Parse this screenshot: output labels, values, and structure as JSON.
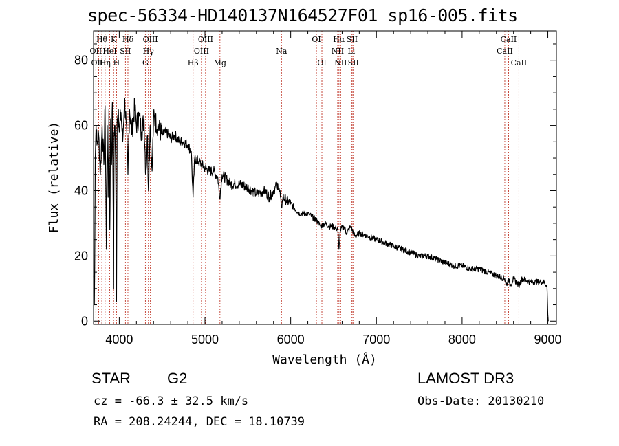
{
  "title": "spec-56334-HD140137N164527F01_sp16-005.fits",
  "info": {
    "object_class": "STAR",
    "subclass": "G2",
    "survey": "LAMOST DR3",
    "cz": "cz = -66.3 ± 32.5 km/s",
    "obs_date": "Obs-Date: 20130210",
    "radec": "RA = 208.24244, DEC =  18.10739"
  },
  "chart_data": {
    "type": "line",
    "title": "spec-56334-HD140137N164527F01_sp16-005.fits",
    "xlabel": "Wavelength (Å)",
    "ylabel": "Flux (relative)",
    "xlim": [
      3700,
      9100
    ],
    "ylim": [
      -1,
      89
    ],
    "xticks": [
      4000,
      5000,
      6000,
      7000,
      8000,
      9000
    ],
    "yticks": [
      0,
      20,
      40,
      60,
      80
    ],
    "grid": false,
    "series": [
      {
        "name": "flux",
        "x": [
          3700,
          3710,
          3720,
          3730,
          3740,
          3760,
          3780,
          3800,
          3820,
          3835,
          3850,
          3860,
          3870,
          3880,
          3890,
          3900,
          3910,
          3920,
          3930,
          3934,
          3940,
          3950,
          3960,
          3968,
          3975,
          3990,
          4000,
          4020,
          4040,
          4060,
          4080,
          4101,
          4120,
          4150,
          4180,
          4200,
          4230,
          4260,
          4290,
          4310,
          4330,
          4340,
          4360,
          4383,
          4400,
          4450,
          4500,
          4550,
          4600,
          4650,
          4700,
          4750,
          4800,
          4840,
          4861,
          4880,
          4920,
          4960,
          5000,
          5050,
          5100,
          5150,
          5172,
          5200,
          5270,
          5300,
          5400,
          5500,
          5600,
          5700,
          5750,
          5800,
          5850,
          5880,
          5893,
          5910,
          5950,
          6000,
          6100,
          6200,
          6300,
          6350,
          6400,
          6450,
          6500,
          6550,
          6563,
          6580,
          6620,
          6650,
          6700,
          6750,
          6800,
          6900,
          7000,
          7100,
          7200,
          7300,
          7400,
          7500,
          7600,
          7700,
          7800,
          7900,
          8000,
          8100,
          8200,
          8300,
          8400,
          8498,
          8520,
          8542,
          8560,
          8600,
          8662,
          8700,
          8800,
          8900,
          8950,
          8990,
          9000,
          9005
        ],
        "y": [
          14,
          5,
          50,
          60,
          54,
          57,
          45,
          60,
          48,
          66,
          22,
          60,
          38,
          65,
          28,
          62,
          48,
          67,
          30,
          10,
          58,
          60,
          42,
          6,
          62,
          65,
          58,
          64,
          55,
          68,
          61,
          45,
          65,
          58,
          66,
          60,
          63,
          58,
          62,
          45,
          57,
          40,
          60,
          46,
          62,
          60,
          57,
          58,
          56,
          57,
          55,
          55,
          54,
          52,
          38,
          50,
          49,
          48,
          47,
          46,
          46,
          44,
          38,
          45,
          43,
          42,
          42,
          41,
          39,
          40,
          38,
          40,
          42,
          38,
          35,
          38,
          37,
          36,
          33,
          33,
          31,
          29,
          30,
          29,
          29,
          28,
          22,
          28,
          29,
          27,
          29,
          26,
          27,
          26,
          25,
          24,
          23,
          22,
          21,
          20,
          20,
          19,
          18,
          17,
          17,
          16,
          16,
          15,
          14,
          13,
          11,
          13,
          11,
          13,
          11,
          13,
          12,
          12,
          12,
          11,
          2,
          0
        ]
      }
    ],
    "lines": [
      {
        "label": "Hθ",
        "wave": 3797,
        "row": 1
      },
      {
        "label": "OII",
        "wave": 3727,
        "row": 2
      },
      {
        "label": "OIII",
        "wave": 3760,
        "row": 3
      },
      {
        "label": "K",
        "wave": 3934,
        "row": 1
      },
      {
        "label": "HeI",
        "wave": 3889,
        "row": 2
      },
      {
        "label": "Hη",
        "wave": 3835,
        "row": 3
      },
      {
        "label": "Hδ",
        "wave": 4101,
        "row": 1
      },
      {
        "label": "SII",
        "wave": 4072,
        "row": 2
      },
      {
        "label": "H",
        "wave": 3968,
        "row": 3
      },
      {
        "label": "OIII",
        "wave": 4363,
        "row": 1
      },
      {
        "label": "Hγ",
        "wave": 4340,
        "row": 2
      },
      {
        "label": "G",
        "wave": 4305,
        "row": 3
      },
      {
        "label": "OIII",
        "wave": 5007,
        "row": 1
      },
      {
        "label": "OIII",
        "wave": 4959,
        "row": 2
      },
      {
        "label": "Hβ",
        "wave": 4861,
        "row": 3
      },
      {
        "label": "Mg",
        "wave": 5175,
        "row": 3
      },
      {
        "label": "Na",
        "wave": 5893,
        "row": 2
      },
      {
        "label": "OI",
        "wave": 6300,
        "row": 1
      },
      {
        "label": "OI",
        "wave": 6364,
        "row": 3
      },
      {
        "label": "Hα",
        "wave": 6563,
        "row": 1
      },
      {
        "label": "SII",
        "wave": 6717,
        "row": 1
      },
      {
        "label": "NII",
        "wave": 6548,
        "row": 2
      },
      {
        "label": "Li",
        "wave": 6708,
        "row": 2
      },
      {
        "label": "NII",
        "wave": 6583,
        "row": 3
      },
      {
        "label": "SII",
        "wave": 6731,
        "row": 3
      },
      {
        "label": "CaII",
        "wave": 8542,
        "row": 1
      },
      {
        "label": "CaII",
        "wave": 8498,
        "row": 2
      },
      {
        "label": "CaII",
        "wave": 8662,
        "row": 3
      }
    ]
  }
}
